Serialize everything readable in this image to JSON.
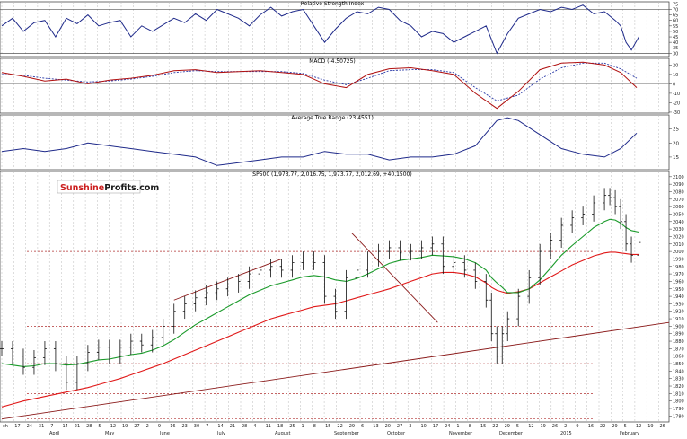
{
  "chart_data": {
    "type": "line",
    "panels": {
      "rsi": {
        "title": "Relative Strength Index",
        "yticks": [
          30,
          35,
          40,
          45,
          50,
          55,
          60,
          65,
          70,
          75
        ],
        "ylim": [
          27,
          77
        ],
        "levels": [
          70,
          30
        ],
        "x": [
          0,
          10,
          20,
          30,
          40,
          50,
          60,
          70,
          80,
          90,
          100,
          110,
          120,
          130,
          140,
          150,
          160,
          170,
          180,
          190,
          200,
          210,
          220,
          230,
          240,
          250,
          260,
          270,
          280,
          290,
          300,
          310,
          320,
          330,
          340,
          350,
          360,
          370,
          380,
          390,
          400,
          410,
          420,
          430,
          440,
          450,
          460,
          470,
          480,
          490,
          500,
          510,
          520,
          530,
          540,
          550,
          560,
          570,
          575,
          580,
          585,
          592
        ],
        "values": [
          55,
          62,
          50,
          58,
          60,
          45,
          62,
          57,
          65,
          55,
          58,
          60,
          45,
          55,
          50,
          56,
          62,
          58,
          66,
          60,
          70,
          66,
          62,
          55,
          65,
          72,
          64,
          68,
          70,
          55,
          40,
          52,
          62,
          68,
          66,
          72,
          70,
          60,
          55,
          45,
          50,
          48,
          40,
          45,
          50,
          55,
          30,
          48,
          62,
          66,
          70,
          68,
          72,
          70,
          74,
          66,
          68,
          60,
          55,
          40,
          33,
          45
        ]
      },
      "macd": {
        "title": "MACD (-4.50725)",
        "yticks": [
          -30,
          -20,
          -10,
          0,
          10,
          20
        ],
        "ylim": [
          -31,
          27
        ],
        "x": [
          0,
          20,
          40,
          60,
          80,
          100,
          120,
          140,
          160,
          180,
          200,
          220,
          240,
          260,
          280,
          300,
          320,
          340,
          360,
          380,
          400,
          420,
          440,
          460,
          480,
          500,
          520,
          540,
          560,
          575,
          590
        ],
        "macd_values": [
          12,
          8,
          3,
          5,
          0,
          4,
          6,
          9,
          14,
          15,
          12,
          13,
          14,
          12,
          10,
          0,
          -4,
          10,
          16,
          17,
          14,
          10,
          -10,
          -26,
          -8,
          15,
          22,
          23,
          20,
          12,
          -4
        ],
        "signal_values": [
          10,
          9,
          6,
          4,
          2,
          3,
          5,
          8,
          12,
          14,
          13,
          13,
          13,
          13,
          11,
          4,
          -1,
          6,
          14,
          15,
          15,
          12,
          -4,
          -18,
          -12,
          5,
          17,
          22,
          22,
          16,
          6
        ]
      },
      "atr": {
        "title": "Average True Range (23.4551)",
        "yticks": [
          15,
          20,
          25
        ],
        "ylim": [
          10.5,
          30
        ],
        "x": [
          0,
          20,
          40,
          60,
          80,
          100,
          120,
          140,
          160,
          180,
          200,
          220,
          240,
          260,
          280,
          300,
          320,
          340,
          360,
          380,
          400,
          420,
          440,
          460,
          470,
          480,
          500,
          520,
          540,
          560,
          575,
          590
        ],
        "values": [
          17,
          18,
          17,
          18,
          20,
          19,
          18,
          17,
          16,
          15,
          12,
          13,
          14,
          15,
          15,
          17,
          16,
          16,
          14,
          15,
          15,
          16,
          19,
          28,
          29,
          28,
          23,
          18,
          16,
          15,
          18,
          23.5
        ]
      },
      "price": {
        "title": "SP500 (1,973.77, 2,016.75, 1,973.77, 2,012.69, +40.1500)",
        "yticks": [
          1780,
          1790,
          1800,
          1810,
          1820,
          1830,
          1840,
          1850,
          1860,
          1870,
          1880,
          1890,
          1900,
          1910,
          1920,
          1930,
          1940,
          1950,
          1960,
          1970,
          1980,
          1990,
          2000,
          2010,
          2020,
          2030,
          2040,
          2050,
          2060,
          2070,
          2080,
          2090,
          2100
        ],
        "ylim": [
          1772,
          2107
        ],
        "x": [
          0,
          10,
          20,
          30,
          40,
          50,
          60,
          70,
          80,
          90,
          100,
          110,
          120,
          130,
          140,
          150,
          160,
          170,
          180,
          190,
          200,
          210,
          220,
          230,
          240,
          250,
          260,
          270,
          280,
          290,
          300,
          310,
          320,
          330,
          340,
          350,
          360,
          370,
          380,
          390,
          400,
          410,
          420,
          430,
          440,
          450,
          455,
          460,
          465,
          470,
          480,
          490,
          500,
          510,
          520,
          530,
          540,
          550,
          560,
          565,
          570,
          575,
          580,
          585,
          592
        ],
        "close": [
          1870,
          1860,
          1845,
          1858,
          1870,
          1850,
          1825,
          1850,
          1865,
          1872,
          1860,
          1872,
          1880,
          1875,
          1885,
          1900,
          1920,
          1930,
          1938,
          1945,
          1950,
          1955,
          1960,
          1970,
          1975,
          1980,
          1975,
          1985,
          1990,
          1985,
          1940,
          1920,
          1965,
          1975,
          1990,
          2000,
          2005,
          1998,
          2000,
          2005,
          2010,
          1980,
          1985,
          1975,
          1960,
          1935,
          1890,
          1860,
          1890,
          1910,
          1940,
          1965,
          2000,
          2015,
          2035,
          2045,
          2050,
          2065,
          2075,
          2072,
          2060,
          2040,
          2010,
          1995,
          2012
        ],
        "sma_green": [
          1850,
          1848,
          1846,
          1847,
          1850,
          1850,
          1848,
          1849,
          1852,
          1855,
          1856,
          1859,
          1862,
          1864,
          1868,
          1874,
          1882,
          1892,
          1902,
          1910,
          1918,
          1926,
          1934,
          1942,
          1948,
          1954,
          1958,
          1962,
          1966,
          1968,
          1966,
          1962,
          1960,
          1964,
          1970,
          1977,
          1984,
          1988,
          1990,
          1992,
          1995,
          1994,
          1993,
          1990,
          1985,
          1975,
          1965,
          1958,
          1952,
          1945,
          1945,
          1950,
          1962,
          1978,
          1995,
          2008,
          2020,
          2032,
          2040,
          2043,
          2042,
          2038,
          2032,
          2028,
          2026
        ],
        "sma_red": [
          1792,
          1796,
          1800,
          1803,
          1806,
          1809,
          1812,
          1815,
          1818,
          1822,
          1826,
          1830,
          1835,
          1840,
          1845,
          1850,
          1856,
          1862,
          1868,
          1874,
          1880,
          1886,
          1892,
          1898,
          1904,
          1910,
          1914,
          1918,
          1922,
          1926,
          1928,
          1930,
          1934,
          1938,
          1942,
          1946,
          1950,
          1955,
          1960,
          1965,
          1970,
          1972,
          1972,
          1970,
          1966,
          1958,
          1952,
          1948,
          1946,
          1944,
          1946,
          1950,
          1958,
          1966,
          1974,
          1982,
          1988,
          1994,
          1998,
          1999,
          1999,
          1998,
          1997,
          1996,
          1996
        ],
        "hlines": [
          2000,
          1900,
          1850,
          1810,
          1776
        ],
        "xlabel": "",
        "ylabel": ""
      }
    },
    "xtick_labels": [
      "ch",
      "17",
      "24",
      "31",
      "7",
      "14",
      "21",
      "28",
      "5",
      "12",
      "19",
      "27",
      "2",
      "9",
      "16",
      "23",
      "30",
      "7",
      "14",
      "21",
      "28",
      "4",
      "11",
      "18",
      "25",
      "1",
      "8",
      "15",
      "22",
      "29",
      "6",
      "13",
      "20",
      "27",
      "3",
      "10",
      "17",
      "24",
      "1",
      "8",
      "15",
      "22",
      "29",
      "5",
      "12",
      "19",
      "26",
      "2",
      "9",
      "16",
      "22",
      "29",
      "5",
      "12",
      "19",
      "26"
    ],
    "month_labels": [
      "April",
      "May",
      "June",
      "July",
      "August",
      "September",
      "October",
      "November",
      "December",
      "2015",
      "February"
    ],
    "brand": {
      "part1": "Sunshine",
      "part2": "Profits.com"
    }
  }
}
